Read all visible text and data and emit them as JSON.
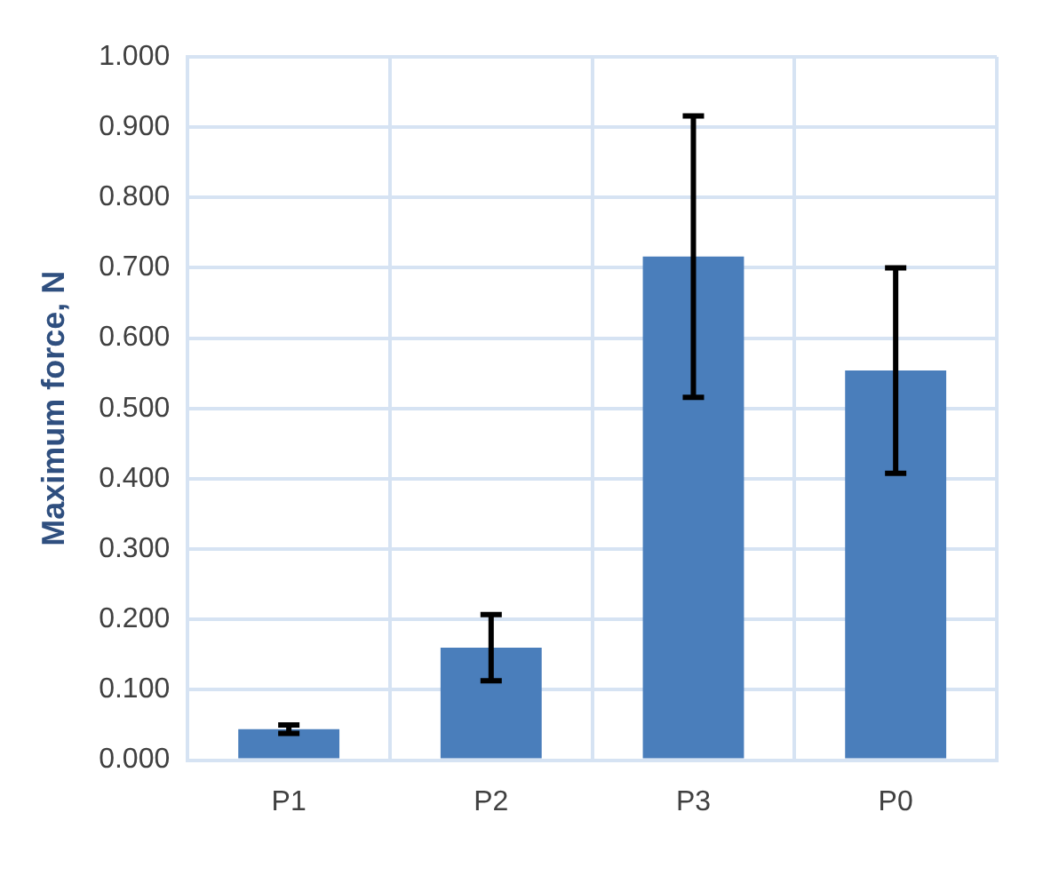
{
  "chart_data": {
    "type": "bar",
    "ylabel": "Maximum force, N",
    "categories": [
      "P1",
      "P2",
      "P3",
      "P0"
    ],
    "values": [
      0.044,
      0.16,
      0.716,
      0.554
    ],
    "errors": [
      0.006,
      0.047,
      0.2,
      0.146
    ],
    "color": "#4a7ebb",
    "ylim": [
      0,
      1
    ],
    "yticks": [
      {
        "value": 0,
        "label": "0.000"
      },
      {
        "value": 0.1,
        "label": "0.100"
      },
      {
        "value": 0.2,
        "label": "0.200"
      },
      {
        "value": 0.3,
        "label": "0.300"
      },
      {
        "value": 0.4,
        "label": "0.400"
      },
      {
        "value": 0.5,
        "label": "0.500"
      },
      {
        "value": 0.6,
        "label": "0.600"
      },
      {
        "value": 0.7,
        "label": "0.700"
      },
      {
        "value": 0.8,
        "label": "0.800"
      },
      {
        "value": 0.9,
        "label": "0.900"
      },
      {
        "value": 1,
        "label": "1.000"
      }
    ],
    "grid": true,
    "legend": false
  }
}
